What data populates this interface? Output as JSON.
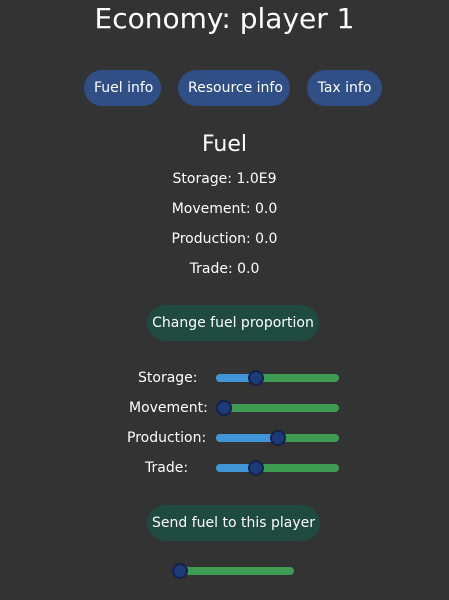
{
  "title": "Economy: player 1",
  "tabs": [
    {
      "label": "Fuel info"
    },
    {
      "label": "Resource info"
    },
    {
      "label": "Tax info"
    }
  ],
  "section": {
    "title": "Fuel",
    "stats": [
      {
        "text": "Storage: 1.0E9"
      },
      {
        "text": "Movement: 0.0"
      },
      {
        "text": "Production: 0.0"
      },
      {
        "text": "Trade: 0.0"
      }
    ]
  },
  "change_button_label": "Change fuel proportion",
  "sliders": [
    {
      "label": "Storage:",
      "value": 0.3
    },
    {
      "label": "Movement:",
      "value": 0.0
    },
    {
      "label": "Production:",
      "value": 0.5
    },
    {
      "label": "Trade:",
      "value": 0.3
    }
  ],
  "send_button_label": "Send fuel to this player",
  "send_slider": {
    "value": 0.0
  },
  "colors": {
    "background": "#333333",
    "tab": "#2f4f86",
    "green_button": "#1f4a40",
    "slider_fill": "#3f95d6",
    "slider_track": "#3d9b52",
    "knob": "#1f3a78"
  }
}
